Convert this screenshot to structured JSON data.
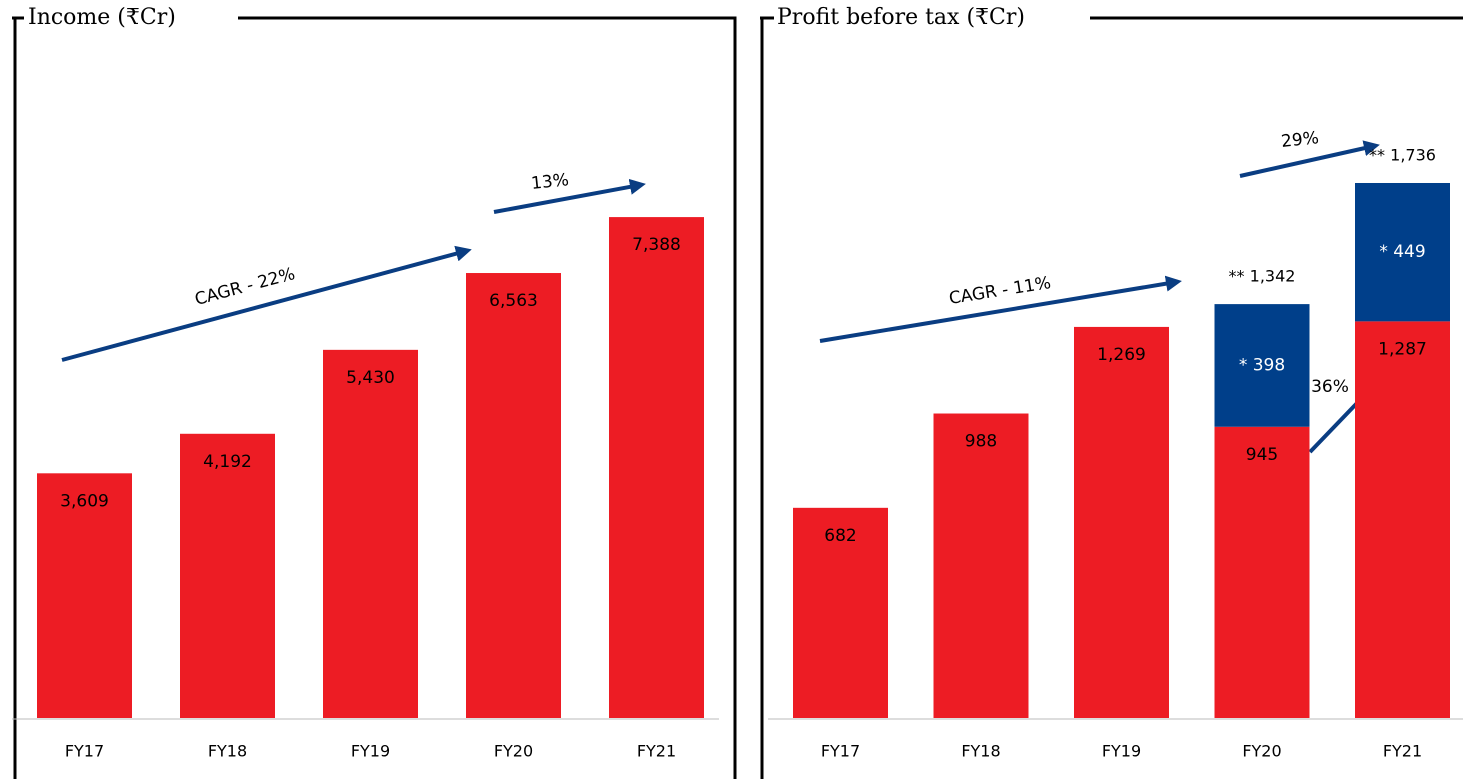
{
  "chart_data": [
    {
      "type": "bar",
      "title": "Income (₹Cr)",
      "categories": [
        "FY17",
        "FY18",
        "FY19",
        "FY20",
        "FY21"
      ],
      "values": [
        3609,
        4192,
        5430,
        6563,
        7388
      ],
      "value_labels": [
        "3,609",
        "4,192",
        "5,430",
        "6,563",
        "7,388"
      ],
      "color": "#ed1c24",
      "ylim": [
        0,
        10000
      ],
      "annotations": [
        "CAGR - 22%",
        "13%"
      ]
    },
    {
      "type": "stacked_bar",
      "title": "Profit before tax (₹Cr)",
      "categories": [
        "FY17",
        "FY18",
        "FY19",
        "FY20",
        "FY21"
      ],
      "series": [
        {
          "color": "#ed1c24",
          "values": [
            682,
            988,
            1269,
            945,
            1287
          ],
          "value_labels": [
            "682",
            "988",
            "1,269",
            "945",
            "1,287"
          ]
        },
        {
          "color": "#003f8a",
          "values": [
            null,
            null,
            null,
            398,
            449
          ],
          "value_labels": [
            null,
            null,
            null,
            "* 398",
            "* 449"
          ]
        }
      ],
      "total_labels": [
        null,
        null,
        null,
        "** 1,342",
        "** 1,736"
      ],
      "ylim": [
        0,
        2200
      ],
      "annotations": [
        "CAGR - 11%",
        "29%",
        "36%"
      ]
    }
  ]
}
